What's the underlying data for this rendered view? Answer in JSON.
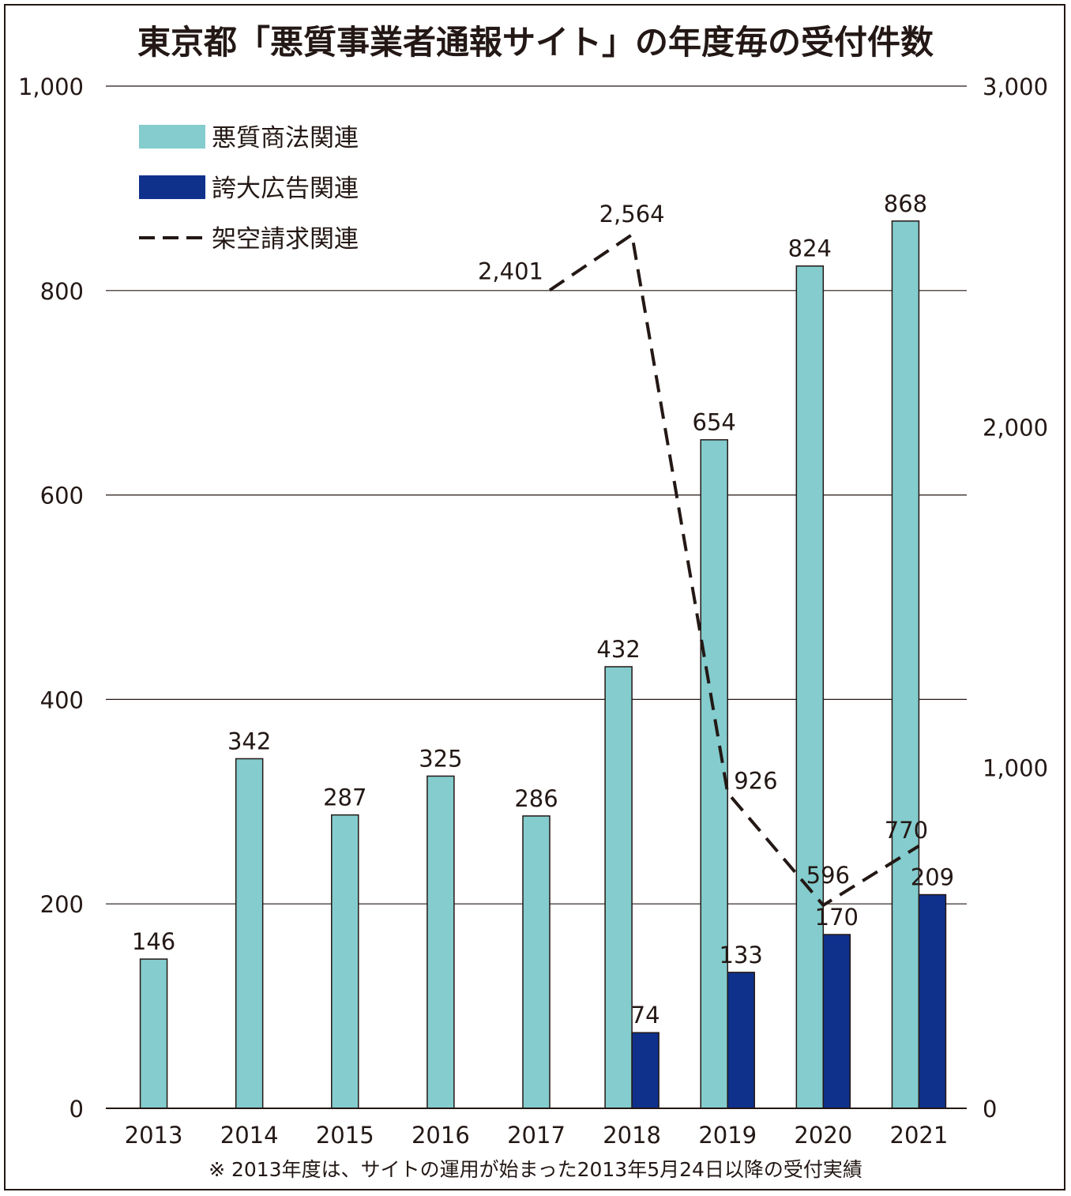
{
  "chart_data": {
    "type": "bar+line",
    "title": "東京都「悪質事業者通報サイト」の年度毎の受付件数",
    "categories": [
      "2013",
      "2014",
      "2015",
      "2016",
      "2017",
      "2018",
      "2019",
      "2020",
      "2021"
    ],
    "series": [
      {
        "name": "悪質商法関連",
        "type": "bar",
        "axis": "left",
        "color": "#84cccd",
        "values": [
          146,
          342,
          287,
          325,
          286,
          432,
          654,
          824,
          868
        ],
        "labels": [
          "146",
          "342",
          "287",
          "325",
          "286",
          "432",
          "654",
          "824",
          "868"
        ]
      },
      {
        "name": "誇大広告関連",
        "type": "bar",
        "axis": "left",
        "color": "#0f318c",
        "values": [
          null,
          null,
          null,
          null,
          null,
          74,
          133,
          170,
          209
        ],
        "labels": [
          "",
          "",
          "",
          "",
          "",
          "74",
          "133",
          "170",
          "209"
        ]
      },
      {
        "name": "架空請求関連",
        "type": "line",
        "style": "dashed",
        "axis": "right",
        "color": "#231815",
        "values": [
          null,
          null,
          null,
          null,
          2401,
          2564,
          926,
          596,
          770
        ],
        "labels": [
          "",
          "",
          "",
          "",
          "2,401",
          "2,564",
          "926",
          "596",
          "770"
        ]
      }
    ],
    "y_left": {
      "range": [
        0,
        1000
      ],
      "ticks": [
        0,
        200,
        400,
        600,
        800,
        1000
      ],
      "tick_labels": [
        "0",
        "200",
        "400",
        "600",
        "800",
        "1,000"
      ]
    },
    "y_right": {
      "range": [
        0,
        3000
      ],
      "ticks": [
        0,
        1000,
        2000,
        3000
      ],
      "tick_labels": [
        "0",
        "1,000",
        "2,000",
        "3,000"
      ]
    },
    "grid": true,
    "legend_position": "top-left",
    "note": "※ 2013年度は、サイトの運用が始まった2013年5月24日以降の受付実績"
  }
}
